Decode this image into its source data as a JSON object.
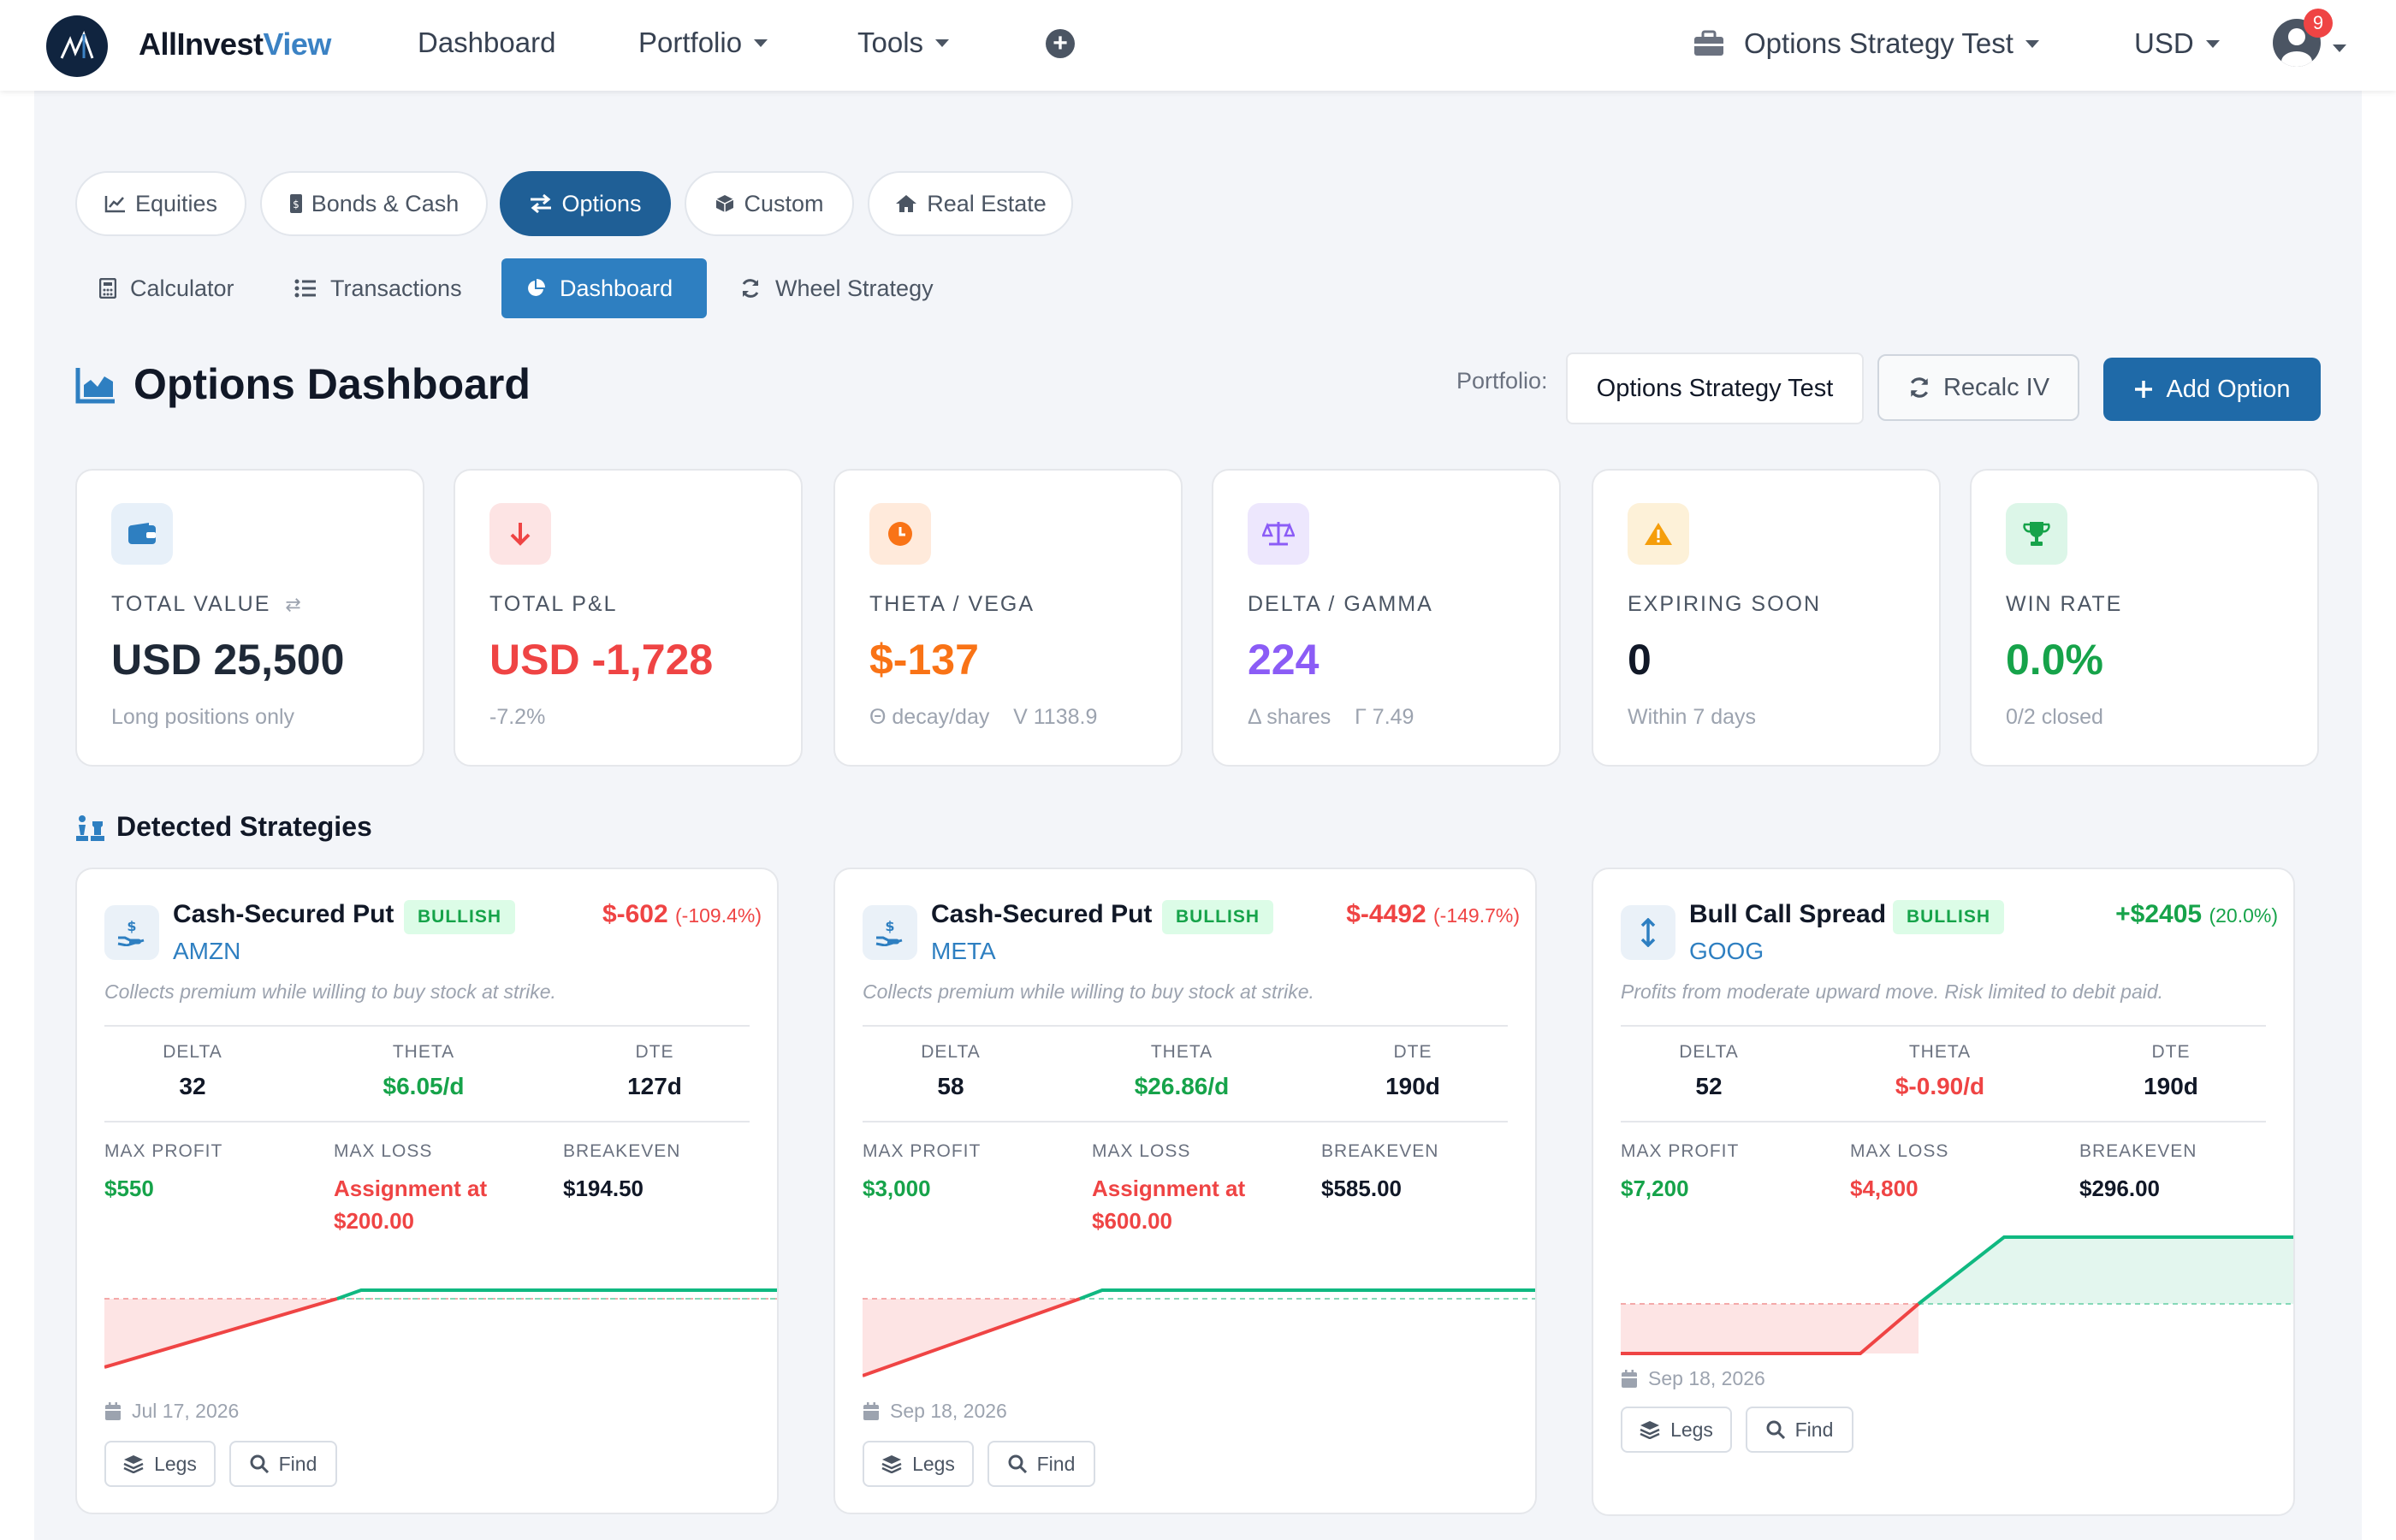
{
  "navbar": {
    "brand_main": "AllInvest",
    "brand_accent": "View",
    "menu": [
      "Dashboard",
      "Portfolio",
      "Tools"
    ],
    "portfolio_name": "Options Strategy Test",
    "currency": "USD",
    "notification_count": "9"
  },
  "asset_tabs": [
    "Equities",
    "Bonds & Cash",
    "Options",
    "Custom",
    "Real Estate"
  ],
  "active_asset_tab": "Options",
  "sub_tabs": [
    "Calculator",
    "Transactions",
    "Dashboard",
    "Wheel Strategy"
  ],
  "active_sub_tab": "Dashboard",
  "header": {
    "title": "Options Dashboard",
    "portfolio_label": "Portfolio:",
    "portfolio_value": "Options Strategy Test",
    "recalc_label": "Recalc IV",
    "add_label": "Add Option"
  },
  "stats": [
    {
      "label": "TOTAL VALUE",
      "value": "USD 25,500",
      "sub": "Long positions only",
      "icon": "wallet-icon",
      "color": "#111827"
    },
    {
      "label": "TOTAL P&L",
      "value": "USD -1,728",
      "sub": "-7.2%",
      "icon": "arrow-down-icon",
      "color": "#ef4444"
    },
    {
      "label": "THETA / VEGA",
      "value": "$-137",
      "sub": "Θ decay/day    V 1138.9",
      "icon": "clock-icon",
      "color": "#f97316"
    },
    {
      "label": "DELTA / GAMMA",
      "value": "224",
      "sub": "Δ shares    Γ 7.49",
      "icon": "scale-icon",
      "color": "#8b5cf6"
    },
    {
      "label": "EXPIRING SOON",
      "value": "0",
      "sub": "Within 7 days",
      "icon": "warning-icon",
      "color": "#111827"
    },
    {
      "label": "WIN RATE",
      "value": "0.0%",
      "sub": "0/2 closed",
      "icon": "trophy-icon",
      "color": "#16a34a"
    }
  ],
  "strategies_title": "Detected Strategies",
  "greek_labels": [
    "DELTA",
    "THETA",
    "DTE"
  ],
  "metric_labels": [
    "MAX PROFIT",
    "MAX LOSS",
    "BREAKEVEN"
  ],
  "button_labels": {
    "legs": "Legs",
    "find": "Find"
  },
  "strategies": [
    {
      "name": "Cash-Secured Put",
      "badge": "BULLISH",
      "ticker": "AMZN",
      "pnl": "$-602",
      "pnl_pct": "(-109.4%)",
      "pnl_color": "#ef4444",
      "description": "Collects premium while willing to buy stock at strike.",
      "delta": "32",
      "theta": "$6.05/d",
      "theta_color": "#16a34a",
      "dte": "127d",
      "max_profit": "$550",
      "max_loss_line1": "Assignment at",
      "max_loss_line2": "$200.00",
      "breakeven": "$194.50",
      "expiry": "Jul 17, 2026",
      "icon": "hand-coin-icon"
    },
    {
      "name": "Cash-Secured Put",
      "badge": "BULLISH",
      "ticker": "META",
      "pnl": "$-4492",
      "pnl_pct": "(-149.7%)",
      "pnl_color": "#ef4444",
      "description": "Collects premium while willing to buy stock at strike.",
      "delta": "58",
      "theta": "$26.86/d",
      "theta_color": "#16a34a",
      "dte": "190d",
      "max_profit": "$3,000",
      "max_loss_line1": "Assignment at",
      "max_loss_line2": "$600.00",
      "breakeven": "$585.00",
      "expiry": "Sep 18, 2026",
      "icon": "hand-coin-icon"
    },
    {
      "name": "Bull Call Spread",
      "badge": "BULLISH",
      "ticker": "GOOG",
      "pnl": "+$2405",
      "pnl_pct": "(20.0%)",
      "pnl_color": "#16a34a",
      "description": "Profits from moderate upward move. Risk limited to debit paid.",
      "delta": "52",
      "theta": "$-0.90/d",
      "theta_color": "#ef4444",
      "dte": "190d",
      "max_profit": "$7,200",
      "max_loss_line1": "$4,800",
      "max_loss_line2": "",
      "breakeven": "$296.00",
      "expiry": "Sep 18, 2026",
      "icon": "up-down-arrow-icon"
    }
  ]
}
